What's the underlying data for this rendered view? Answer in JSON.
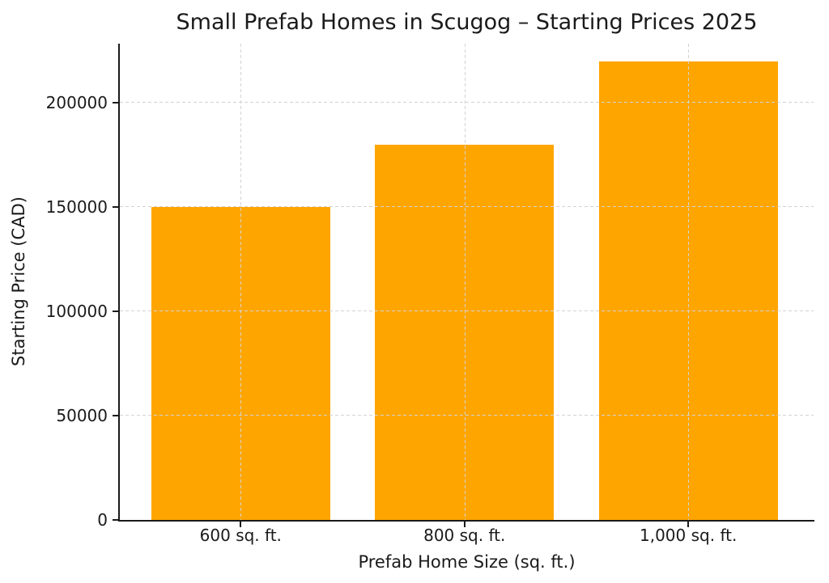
{
  "chart_data": {
    "type": "bar",
    "title": "Small Prefab Homes in Scugog – Starting Prices 2025",
    "categories": [
      "600 sq. ft.",
      "800 sq. ft.",
      "1,000 sq. ft."
    ],
    "values": [
      150000,
      180000,
      220000
    ],
    "xlabel": "Prefab Home Size (sq. ft.)",
    "ylabel": "Starting Price (CAD)",
    "yticks": [
      0,
      50000,
      100000,
      150000,
      200000
    ],
    "ytick_labels": [
      "0",
      "50000",
      "100000",
      "150000",
      "200000"
    ],
    "ylim": [
      0,
      228400
    ],
    "xlim": [
      -0.54,
      2.56
    ],
    "bar_width": 0.8,
    "grid": true,
    "grid_style": "dashed",
    "grid_over_bars": true,
    "legend": "none"
  },
  "colors": {
    "bar": "#FFA500",
    "grid": "#d3d3d3",
    "text": "#1a1a1a",
    "spine": "#1a1a1a",
    "background": "#ffffff"
  }
}
